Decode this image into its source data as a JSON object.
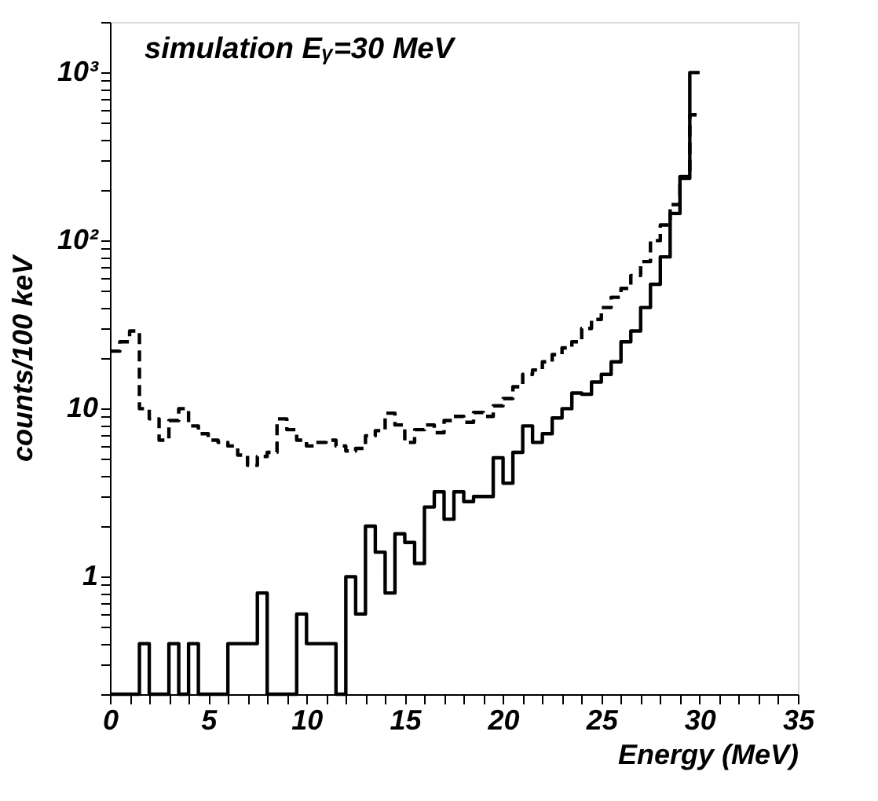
{
  "chart_data": {
    "type": "histogram",
    "annotations": [
      "simulation Eᵧ=30 MeV"
    ],
    "xlabel": "Energy (MeV)",
    "ylabel": "counts/100 keV",
    "bins": [
      0,
      0.5,
      1,
      1.5,
      2,
      2.5,
      3,
      3.5,
      4,
      4.5,
      5,
      5.5,
      6,
      6.5,
      7,
      7.5,
      8,
      8.5,
      9,
      9.5,
      10,
      10.5,
      11,
      11.5,
      12,
      12.5,
      13,
      13.5,
      14,
      14.5,
      15,
      15.5,
      16,
      16.5,
      17,
      17.5,
      18,
      18.5,
      19,
      19.5,
      20,
      20.5,
      21,
      21.5,
      22,
      22.5,
      23,
      23.5,
      24,
      24.5,
      25,
      25.5,
      26,
      26.5,
      27,
      27.5,
      28,
      28.5,
      29,
      29.5,
      30
    ],
    "series": [
      {
        "color": "#000000",
        "line_style": "solid",
        "values": [
          null,
          null,
          null,
          0.4,
          null,
          null,
          0.4,
          null,
          0.4,
          null,
          null,
          null,
          0.4,
          0.4,
          0.4,
          0.8,
          null,
          null,
          null,
          0.6,
          0.4,
          0.4,
          0.4,
          null,
          1.0,
          0.6,
          2.0,
          1.4,
          0.8,
          1.8,
          1.6,
          1.2,
          2.6,
          3.2,
          2.2,
          3.2,
          2.8,
          3.0,
          3.0,
          5.1,
          3.6,
          5.5,
          7.9,
          6.3,
          7.1,
          8.8,
          10,
          12.4,
          12.2,
          14.4,
          16,
          19,
          25,
          29,
          40,
          55,
          80,
          145,
          240,
          1000
        ]
      },
      {
        "color": "#000000",
        "line_style": "dashed",
        "values": [
          22,
          25,
          29,
          10,
          8.7,
          6.5,
          8.5,
          10,
          7.9,
          7.1,
          6.5,
          6.3,
          6.0,
          5.3,
          4.6,
          5.2,
          5.5,
          8.7,
          7.5,
          6.5,
          6.0,
          6.3,
          6.5,
          6.0,
          5.6,
          5.8,
          6.9,
          7.4,
          9.4,
          8.0,
          6.3,
          7.5,
          8.0,
          7.2,
          8.5,
          9.0,
          8.3,
          9.5,
          9.0,
          10.4,
          11.5,
          13.5,
          16,
          17,
          19,
          21,
          23,
          25,
          30,
          34,
          40,
          46,
          52,
          62,
          75,
          100,
          124,
          164,
          235,
          560
        ]
      }
    ],
    "xlim": [
      0,
      35
    ],
    "xticks": [
      0,
      {
        "value": 1,
        "label": null
      },
      {
        "value": 2,
        "label": null
      },
      {
        "value": 3,
        "label": null
      },
      {
        "value": 4,
        "label": null
      },
      5,
      {
        "value": 6,
        "label": null
      },
      {
        "value": 7,
        "label": null
      },
      {
        "value": 8,
        "label": null
      },
      {
        "value": 9,
        "label": null
      },
      10,
      {
        "value": 11,
        "label": null
      },
      {
        "value": 12,
        "label": null
      },
      {
        "value": 13,
        "label": null
      },
      {
        "value": 14,
        "label": null
      },
      15,
      {
        "value": 16,
        "label": null
      },
      {
        "value": 17,
        "label": null
      },
      {
        "value": 18,
        "label": null
      },
      {
        "value": 19,
        "label": null
      },
      20,
      {
        "value": 21,
        "label": null
      },
      {
        "value": 22,
        "label": null
      },
      {
        "value": 23,
        "label": null
      },
      {
        "value": 24,
        "label": null
      },
      25,
      {
        "value": 26,
        "label": null
      },
      {
        "value": 27,
        "label": null
      },
      {
        "value": 28,
        "label": null
      },
      {
        "value": 29,
        "label": null
      },
      30,
      {
        "value": 31,
        "label": null
      },
      {
        "value": 32,
        "label": null
      },
      {
        "value": 33,
        "label": null
      },
      {
        "value": 34,
        "label": null
      },
      35
    ],
    "ylim": [
      0.2,
      2000
    ],
    "yticks": [
      {
        "value": 0.2,
        "label": null
      },
      {
        "value": 0.3,
        "label": null
      },
      {
        "value": 0.4,
        "label": null
      },
      {
        "value": 0.5,
        "label": null
      },
      {
        "value": 0.6,
        "label": null
      },
      {
        "value": 0.7,
        "label": null
      },
      {
        "value": 0.8,
        "label": null
      },
      {
        "value": 0.9,
        "label": null
      },
      1,
      {
        "value": 2,
        "label": null
      },
      {
        "value": 3,
        "label": null
      },
      {
        "value": 4,
        "label": null
      },
      {
        "value": 5,
        "label": null
      },
      {
        "value": 6,
        "label": null
      },
      {
        "value": 7,
        "label": null
      },
      {
        "value": 8,
        "label": null
      },
      {
        "value": 9,
        "label": null
      },
      10,
      {
        "value": 20,
        "label": null
      },
      {
        "value": 30,
        "label": null
      },
      {
        "value": 40,
        "label": null
      },
      {
        "value": 50,
        "label": null
      },
      {
        "value": 60,
        "label": null
      },
      {
        "value": 70,
        "label": null
      },
      {
        "value": 80,
        "label": null
      },
      {
        "value": 90,
        "label": null
      },
      {
        "value": 100,
        "label": "10²"
      },
      {
        "value": 200,
        "label": null
      },
      {
        "value": 300,
        "label": null
      },
      {
        "value": 400,
        "label": null
      },
      {
        "value": 500,
        "label": null
      },
      {
        "value": 600,
        "label": null
      },
      {
        "value": 700,
        "label": null
      },
      {
        "value": 800,
        "label": null
      },
      {
        "value": 900,
        "label": null
      },
      {
        "value": 1000,
        "label": "10³"
      },
      {
        "value": 2000,
        "label": null
      }
    ],
    "log": true,
    "grid": false
  }
}
